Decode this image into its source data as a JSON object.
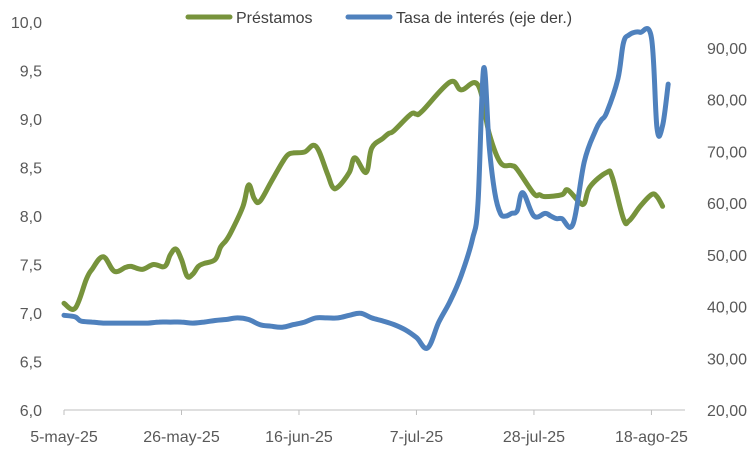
{
  "chart_data": {
    "type": "line",
    "title": "",
    "xlabel": "",
    "ylabel": "",
    "y2label": "",
    "x_tick_labels": [
      "5-may-25",
      "26-may-25",
      "16-jun-25",
      "7-jul-25",
      "28-jul-25",
      "18-ago-25"
    ],
    "x_tick_dates": [
      "2025-05-05",
      "2025-05-26",
      "2025-06-16",
      "2025-07-07",
      "2025-07-28",
      "2025-08-18"
    ],
    "xlim": [
      "2025-05-05",
      "2025-08-24"
    ],
    "ylim": [
      6.0,
      10.0
    ],
    "y_tick_labels": [
      "6,0",
      "6,5",
      "7,0",
      "7,5",
      "8,0",
      "8,5",
      "9,0",
      "9,5",
      "10,0"
    ],
    "y2lim": [
      20.0,
      95.0
    ],
    "y2_tick_labels": [
      "20,00",
      "30,00",
      "40,00",
      "50,00",
      "60,00",
      "70,00",
      "80,00",
      "90,00"
    ],
    "grid": false,
    "legend_position": "top",
    "series": [
      {
        "name": "Préstamos",
        "axis": "left",
        "color": "#77933c",
        "x": [
          "2025-05-05",
          "2025-05-07",
          "2025-05-09",
          "2025-05-10",
          "2025-05-12",
          "2025-05-14",
          "2025-05-16",
          "2025-05-17",
          "2025-05-19",
          "2025-05-21",
          "2025-05-23",
          "2025-05-24",
          "2025-05-25",
          "2025-05-26",
          "2025-05-27",
          "2025-05-28",
          "2025-05-29",
          "2025-05-30",
          "2025-06-01",
          "2025-06-02",
          "2025-06-03",
          "2025-06-04",
          "2025-06-06",
          "2025-06-07",
          "2025-06-08",
          "2025-06-09",
          "2025-06-11",
          "2025-06-13",
          "2025-06-14",
          "2025-06-15",
          "2025-06-17",
          "2025-06-19",
          "2025-06-21",
          "2025-06-22",
          "2025-06-23",
          "2025-06-25",
          "2025-06-26",
          "2025-06-28",
          "2025-06-29",
          "2025-07-01",
          "2025-07-02",
          "2025-07-03",
          "2025-07-06",
          "2025-07-07",
          "2025-07-08",
          "2025-07-13",
          "2025-07-15",
          "2025-07-18",
          "2025-07-20",
          "2025-07-22",
          "2025-07-24",
          "2025-07-25",
          "2025-07-28",
          "2025-07-29",
          "2025-07-30",
          "2025-08-02",
          "2025-08-03",
          "2025-08-05",
          "2025-08-06",
          "2025-08-07",
          "2025-08-10",
          "2025-08-11",
          "2025-08-13",
          "2025-08-14",
          "2025-08-16",
          "2025-08-18",
          "2025-08-19",
          "2025-08-20"
        ],
        "values": [
          7.1,
          7.05,
          7.35,
          7.45,
          7.58,
          7.43,
          7.47,
          7.48,
          7.45,
          7.5,
          7.48,
          7.6,
          7.66,
          7.55,
          7.38,
          7.4,
          7.48,
          7.51,
          7.55,
          7.68,
          7.75,
          7.85,
          8.1,
          8.32,
          8.18,
          8.15,
          8.35,
          8.55,
          8.63,
          8.65,
          8.66,
          8.72,
          8.45,
          8.3,
          8.3,
          8.45,
          8.6,
          8.45,
          8.7,
          8.8,
          8.85,
          8.88,
          9.05,
          9.05,
          9.08,
          9.38,
          9.3,
          9.35,
          8.85,
          8.55,
          8.52,
          8.48,
          8.23,
          8.22,
          8.2,
          8.22,
          8.27,
          8.15,
          8.13,
          8.3,
          8.45,
          8.4,
          7.97,
          7.95,
          8.1,
          8.22,
          8.2,
          8.1
        ]
      },
      {
        "name": "Tasa de interés (eje der.)",
        "axis": "right",
        "color": "#4f81bd",
        "x": [
          "2025-05-05",
          "2025-05-07",
          "2025-05-08",
          "2025-05-10",
          "2025-05-12",
          "2025-05-14",
          "2025-05-16",
          "2025-05-18",
          "2025-05-20",
          "2025-05-22",
          "2025-05-24",
          "2025-05-26",
          "2025-05-28",
          "2025-05-30",
          "2025-06-01",
          "2025-06-03",
          "2025-06-05",
          "2025-06-07",
          "2025-06-09",
          "2025-06-11",
          "2025-06-13",
          "2025-06-15",
          "2025-06-17",
          "2025-06-19",
          "2025-06-21",
          "2025-06-23",
          "2025-06-25",
          "2025-06-27",
          "2025-06-29",
          "2025-07-01",
          "2025-07-03",
          "2025-07-05",
          "2025-07-07",
          "2025-07-09",
          "2025-07-11",
          "2025-07-13",
          "2025-07-15",
          "2025-07-17",
          "2025-07-18",
          "2025-07-19",
          "2025-07-20",
          "2025-07-21",
          "2025-07-22",
          "2025-07-23",
          "2025-07-24",
          "2025-07-25",
          "2025-07-26",
          "2025-07-28",
          "2025-07-30",
          "2025-07-31",
          "2025-08-01",
          "2025-08-02",
          "2025-08-04",
          "2025-08-06",
          "2025-08-08",
          "2025-08-09",
          "2025-08-10",
          "2025-08-12",
          "2025-08-13",
          "2025-08-14",
          "2025-08-15",
          "2025-08-16",
          "2025-08-18",
          "2025-08-19",
          "2025-08-20",
          "2025-08-21"
        ],
        "values": [
          38.3,
          38.0,
          37.2,
          37.0,
          36.8,
          36.8,
          36.8,
          36.8,
          36.8,
          37.0,
          37.0,
          37.0,
          36.8,
          37.0,
          37.3,
          37.5,
          37.8,
          37.5,
          36.5,
          36.2,
          36.0,
          36.5,
          37.0,
          37.8,
          37.8,
          37.8,
          38.3,
          38.7,
          37.8,
          37.2,
          36.5,
          35.5,
          34.0,
          32.0,
          37.0,
          41.0,
          46.0,
          53.0,
          60.0,
          86.0,
          71.0,
          62.0,
          58.0,
          57.5,
          58.0,
          58.5,
          62.0,
          57.5,
          58.0,
          57.5,
          57.0,
          57.0,
          56.0,
          68.0,
          74.0,
          76.0,
          77.5,
          84.0,
          91.0,
          92.5,
          93.0,
          93.0,
          92.0,
          74.5,
          75.0,
          83.0
        ]
      }
    ]
  }
}
